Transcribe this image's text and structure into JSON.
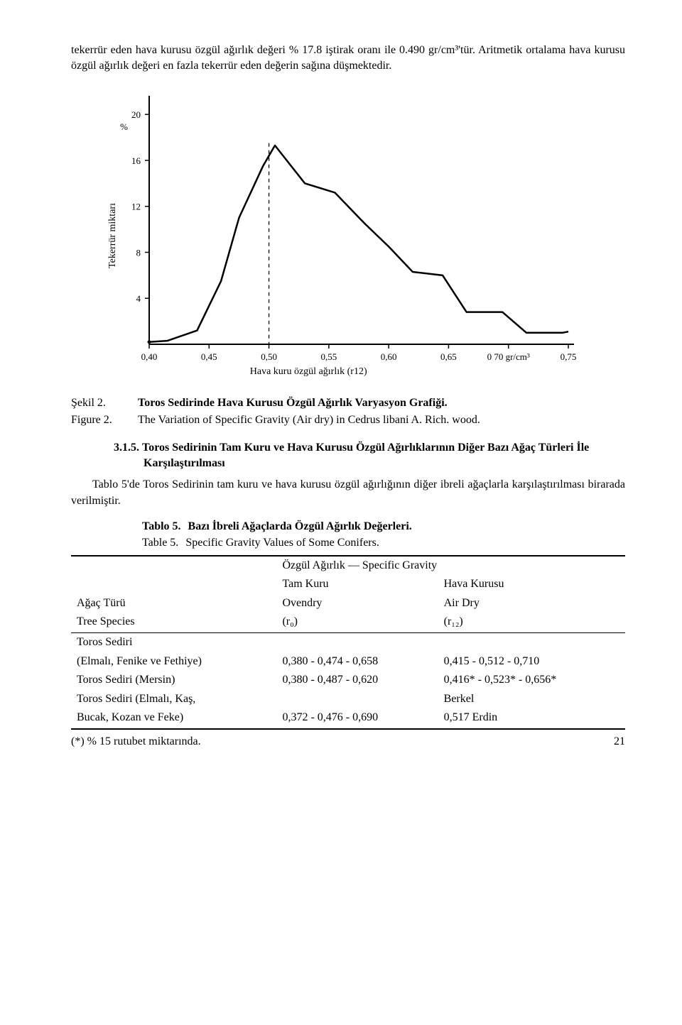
{
  "intro_paragraph": "tekerrür eden hava kurusu özgül ağırlık değeri % 17.8 iştirak oranı ile 0.490 gr/cm³'tür. Aritmetik ortalama hava kurusu özgül ağırlık değeri en fazla tekerrür eden değerin sağına düşmektedir.",
  "chart": {
    "type": "line",
    "y_label": "Tekerrür miktarı",
    "y_unit": "%",
    "x_label": "Hava kuru özgül ağırlık (r12)",
    "x_ticks": [
      "0,40",
      "0,45",
      "0,50",
      "0,55",
      "0,60",
      "0,65",
      "0 70 gr/cm³",
      "0,75"
    ],
    "y_ticks": [
      4,
      8,
      12,
      16,
      20
    ],
    "series_x": [
      0.4,
      0.415,
      0.44,
      0.46,
      0.475,
      0.495,
      0.505,
      0.53,
      0.555,
      0.58,
      0.6,
      0.62,
      0.645,
      0.665,
      0.695,
      0.715,
      0.745,
      0.75
    ],
    "series_y": [
      0.2,
      0.3,
      1.2,
      5.5,
      11.0,
      15.5,
      17.3,
      14.0,
      13.2,
      10.5,
      8.5,
      6.3,
      6.0,
      2.8,
      2.8,
      1.0,
      1.0,
      1.1
    ],
    "peak_x": 0.5,
    "line_color": "#000000",
    "line_width": 2.5,
    "axis_color": "#000000",
    "axis_width": 2,
    "tick_fontsize": 13,
    "label_fontsize": 14,
    "background_color": "#ffffff"
  },
  "figure_caption": {
    "label_tr": "Şekil 2.",
    "text_tr": "Toros Sedirinde Hava Kurusu Özgül Ağırlık Varyasyon Grafiği.",
    "label_en": "Figure 2.",
    "text_en": "The Variation of Specific Gravity (Air dry) in Cedrus libani A. Rich. wood."
  },
  "section": {
    "number": "3.1.5.",
    "title": "Toros Sedirinin Tam Kuru ve Hava Kurusu Özgül Ağırlıklarının Diğer Bazı Ağaç Türleri İle Karşılaştırılması",
    "body": "Tablo 5'de Toros Sedirinin tam kuru ve hava kurusu özgül ağırlığının diğer ibreli ağaçlarla karşılaştırılması birarada verilmiştir."
  },
  "table_caption": {
    "label_tr": "Tablo 5.",
    "text_tr": "Bazı İbreli Ağaçlarda Özgül Ağırlık Değerleri.",
    "label_en": "Table 5.",
    "text_en": "Specific Gravity Values of Some Conifers."
  },
  "table": {
    "span_header": "Özgül Ağırlık — Specific Gravity",
    "col1_header_tr": "Ağaç Türü",
    "col1_header_en": "Tree Species",
    "col2_header_tr": "Tam Kuru",
    "col2_header_mid": "Ovendry",
    "col2_header_en": "(r₀)",
    "col3_header_tr": "Hava Kurusu",
    "col3_header_mid": "Air Dry",
    "col3_header_en": "(r₁₂)",
    "rows": [
      {
        "name_line1": "Toros Sediri",
        "name_line2": "(Elmalı, Fenike ve Fethiye)",
        "c2": "0,380 - 0,474 - 0,658",
        "c3": "0,415 - 0,512 - 0,710"
      },
      {
        "name_line1": "Toros Sediri (Mersin)",
        "name_line2": "",
        "c2": "0,380 - 0,487 - 0,620",
        "c3": "0,416* - 0,523* - 0,656*"
      },
      {
        "name_line1": "Toros Sediri (Elmalı, Kaş,",
        "name_line2": "",
        "c2": "",
        "c3": "Berkel"
      },
      {
        "name_line1": "Bucak, Kozan ve Feke)",
        "name_line2": "",
        "c2": "0,372 - 0,476 - 0,690",
        "c3": "0,517   Erdin"
      }
    ]
  },
  "footnote": "(*)  % 15 rutubet miktarında.",
  "page_number": "21"
}
